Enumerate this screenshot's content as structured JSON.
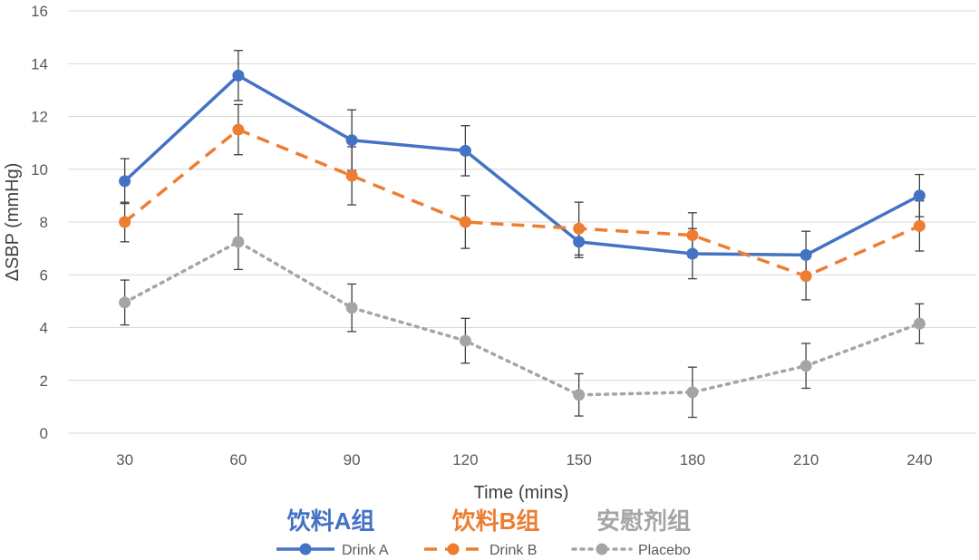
{
  "chart_data": {
    "type": "line",
    "x": [
      30,
      60,
      90,
      120,
      150,
      180,
      210,
      240
    ],
    "xlabel": "Time (mins)",
    "ylabel": "ΔSBP (mmHg)",
    "ylim": [
      0,
      16
    ],
    "yticks": [
      0,
      2,
      4,
      6,
      8,
      10,
      12,
      14,
      16
    ],
    "grid": "horizontal",
    "legend_position": "bottom",
    "series": [
      {
        "name": "Drink A",
        "color": "#4472C4",
        "line_style": "solid",
        "values": [
          9.55,
          13.55,
          11.1,
          10.7,
          7.25,
          6.8,
          6.75,
          9.0
        ],
        "error": [
          0.85,
          0.95,
          1.15,
          0.95,
          0.6,
          0.95,
          0.9,
          0.8
        ]
      },
      {
        "name": "Drink B",
        "color": "#ED7D31",
        "line_style": "dashed",
        "values": [
          8.0,
          11.5,
          9.75,
          8.0,
          7.75,
          7.5,
          5.95,
          7.85
        ],
        "error": [
          0.75,
          0.95,
          1.1,
          1.0,
          1.0,
          0.85,
          0.9,
          0.95
        ]
      },
      {
        "name": "Placebo",
        "color": "#A5A5A5",
        "line_style": "dotted",
        "values": [
          4.95,
          7.25,
          4.75,
          3.5,
          1.45,
          1.55,
          2.55,
          4.15
        ],
        "error": [
          0.85,
          1.05,
          0.9,
          0.85,
          0.8,
          0.95,
          0.85,
          0.75
        ]
      }
    ]
  },
  "group_labels": [
    {
      "text": "饮料A组",
      "color": "#4472C4"
    },
    {
      "text": "饮料B组",
      "color": "#ED7D31"
    },
    {
      "text": "安慰剂组",
      "color": "#A5A5A5"
    }
  ]
}
